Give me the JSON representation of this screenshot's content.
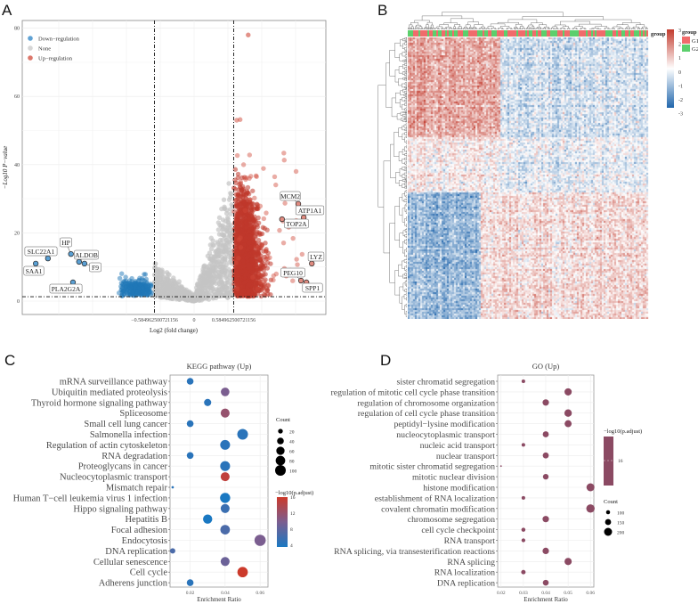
{
  "panels": {
    "a": "A",
    "b": "B",
    "c": "C",
    "d": "D"
  },
  "chart_data": [
    {
      "type": "scatter",
      "id": "volcano",
      "xlabel": "Log2 (fold change)",
      "ylabel": "−Log10 P−value",
      "xticks": [
        "−0.584962500721156",
        "0",
        "0.584962500721156"
      ],
      "xtick_values": [
        -0.584962500721156,
        0,
        0.584962500721156
      ],
      "yticks": [
        0,
        20,
        40,
        60,
        80
      ],
      "xlim": [
        -2.54,
        1.95
      ],
      "ylim": [
        -3,
        83
      ],
      "thresholds": {
        "logfc": 0.584962500721156,
        "neg_log10_p": 1.3
      },
      "legend": [
        {
          "label": "Down−regulation",
          "color": "#2b83c6"
        },
        {
          "label": "None",
          "color": "#c8c8c8"
        },
        {
          "label": "Up−regulation",
          "color": "#d0493a"
        }
      ],
      "labeled_genes": [
        {
          "gene": "SAA1",
          "x": -2.34,
          "y": 11,
          "group": "down"
        },
        {
          "gene": "SLC22A1",
          "x": -2.16,
          "y": 12.5,
          "group": "down"
        },
        {
          "gene": "HP",
          "x": -1.82,
          "y": 13.8,
          "group": "down"
        },
        {
          "gene": "ALDOB",
          "x": -1.7,
          "y": 11.5,
          "group": "down"
        },
        {
          "gene": "F9",
          "x": -1.62,
          "y": 11,
          "group": "down"
        },
        {
          "gene": "PLA2G2A",
          "x": -1.79,
          "y": 5.5,
          "group": "down"
        },
        {
          "gene": "MCM2",
          "x": 1.54,
          "y": 28.5,
          "group": "up"
        },
        {
          "gene": "ATP1A1",
          "x": 1.62,
          "y": 24.5,
          "group": "up"
        },
        {
          "gene": "TOP2A",
          "x": 1.3,
          "y": 24,
          "group": "up"
        },
        {
          "gene": "LYZ",
          "x": 1.74,
          "y": 11,
          "group": "up"
        },
        {
          "gene": "PEG10",
          "x": 1.58,
          "y": 6,
          "group": "up"
        },
        {
          "gene": "SPP1",
          "x": 1.66,
          "y": 5.5,
          "group": "up"
        }
      ],
      "max_point": {
        "x": 0.8,
        "y": 78
      }
    },
    {
      "type": "heatmap",
      "id": "heatmap",
      "colorbar_ticks": [
        3,
        2,
        1,
        0,
        -1,
        -2,
        -3
      ],
      "colorbar_range": [
        -3,
        3
      ],
      "colors": {
        "low": "#2166ac",
        "mid": "#ffffff",
        "high": "#c23b2e"
      },
      "annotation_title": "group",
      "groups": [
        {
          "label": "G1",
          "color": "#f06b6b"
        },
        {
          "label": "G2",
          "color": "#5ccf6c"
        }
      ]
    },
    {
      "type": "scatter",
      "id": "kegg",
      "title": "KEGG pathway (Up)",
      "xlabel": "Enrichment Ratio",
      "xticks": [
        0.02,
        0.04,
        0.06
      ],
      "xlim": [
        0.0085,
        0.0645
      ],
      "categories": [
        "mRNA surveillance pathway",
        "Ubiquitin mediated proteolysis",
        "Thyroid hormone signaling pathway",
        "Spliceosome",
        "Small cell lung cancer",
        "Salmonella infection",
        "Regulation of actin cytoskeleton",
        "RNA degradation",
        "Proteoglycans in cancer",
        "Nucleocytoplasmic transport",
        "Mismatch repair",
        "Human T−cell leukemia virus 1 infection",
        "Hippo signaling pathway",
        "Hepatitis B",
        "Focal adhesion",
        "Endocytosis",
        "DNA replication",
        "Cellular senescence",
        "Cell cycle",
        "Adherens junction"
      ],
      "enrichment_ratio": [
        0.02,
        0.04,
        0.03,
        0.04,
        0.02,
        0.05,
        0.04,
        0.02,
        0.04,
        0.04,
        0.01,
        0.04,
        0.04,
        0.03,
        0.04,
        0.06,
        0.01,
        0.04,
        0.05,
        0.02
      ],
      "count": [
        40,
        65,
        45,
        70,
        40,
        100,
        85,
        40,
        85,
        70,
        5,
        90,
        70,
        75,
        80,
        110,
        25,
        70,
        95,
        40
      ],
      "neg_log10_padj": [
        5,
        10,
        5,
        12,
        5,
        5,
        5,
        5,
        5,
        15,
        5,
        4,
        6,
        4,
        7,
        10,
        7,
        9,
        16,
        5
      ],
      "size_legend": {
        "title": "Count",
        "values": [
          20,
          40,
          60,
          80,
          100
        ]
      },
      "color_legend": {
        "title": "−log10(p.adjust)",
        "ticks": [
          16,
          12,
          8,
          4
        ],
        "range": [
          4,
          16
        ]
      }
    },
    {
      "type": "scatter",
      "id": "go",
      "title": "GO (Up)",
      "xlabel": "Enrichment Ratio",
      "xticks": [
        0.02,
        0.03,
        0.04,
        0.05,
        0.06
      ],
      "xlim": [
        0.0185,
        0.0615
      ],
      "categories": [
        "sister chromatid segregation",
        "regulation of mitotic cell cycle phase transition",
        "regulation of chromosome organization",
        "regulation of cell cycle phase transition",
        "peptidyl−lysine modification",
        "nucleocytoplasmic transport",
        "nucleic acid transport",
        "nuclear transport",
        "mitotic sister chromatid segregation",
        "mitotic nuclear division",
        "histone modification",
        "establishment of RNA localization",
        "covalent chromatin modification",
        "chromosome segregation",
        "cell cycle checkpoint",
        "RNA transport",
        "RNA splicing, via transesterification reactions",
        "RNA splicing",
        "RNA localization",
        "DNA replication"
      ],
      "enrichment_ratio": [
        0.03,
        0.05,
        0.04,
        0.05,
        0.05,
        0.04,
        0.03,
        0.04,
        0.02,
        0.04,
        0.06,
        0.03,
        0.06,
        0.04,
        0.03,
        0.03,
        0.04,
        0.05,
        0.03,
        0.04
      ],
      "count": [
        90,
        180,
        160,
        185,
        175,
        150,
        90,
        150,
        40,
        140,
        200,
        90,
        210,
        160,
        100,
        95,
        160,
        180,
        110,
        145
      ],
      "neg_log10_padj": [
        16,
        16,
        16,
        16,
        16,
        16,
        16,
        16,
        16,
        16,
        16,
        16,
        16,
        16,
        16,
        16,
        16,
        16,
        16,
        16
      ],
      "point_color": "#8b4a63",
      "size_legend": {
        "title": "Count",
        "values": [
          100,
          150,
          200
        ]
      },
      "color_legend": {
        "title": "−log10(p.adjust)",
        "ticks": [
          16
        ]
      }
    }
  ]
}
